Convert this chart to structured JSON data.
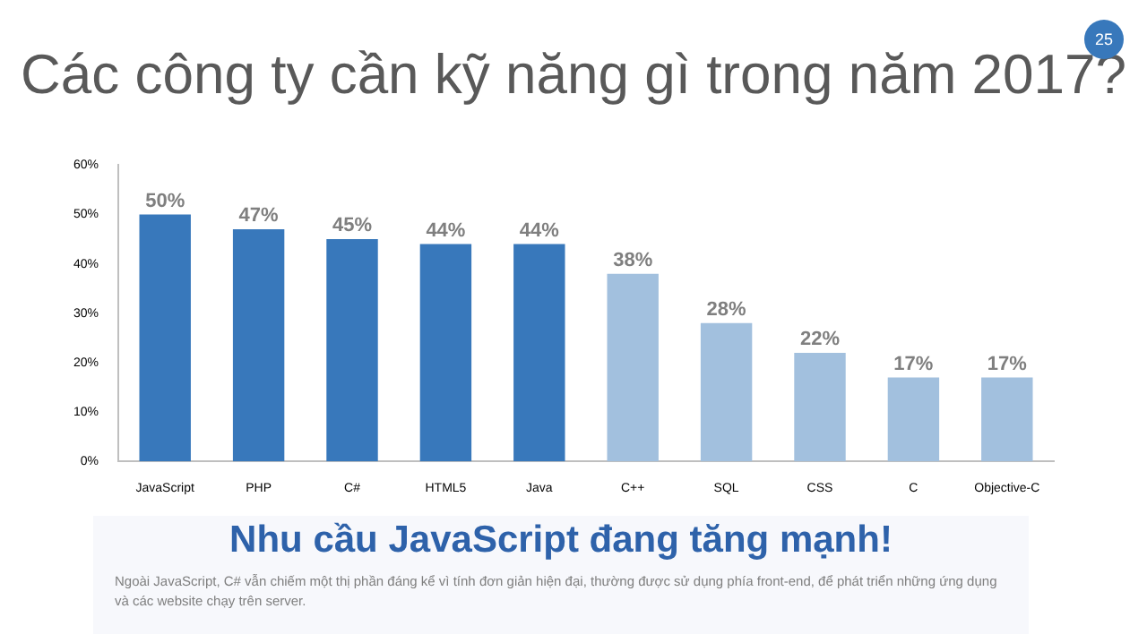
{
  "chart_data": {
    "type": "bar",
    "title": "Các công ty cần kỹ năng gì trong năm 2017?",
    "categories": [
      "JavaScript",
      "PHP",
      "C#",
      "HTML5",
      "Java",
      "C++",
      "SQL",
      "CSS",
      "C",
      "Objective-C"
    ],
    "values": [
      50,
      47,
      45,
      44,
      44,
      38,
      28,
      22,
      17,
      17
    ],
    "colors": [
      "#3878bb",
      "#3878bb",
      "#3878bb",
      "#3878bb",
      "#3878bb",
      "#a2c0de",
      "#a2c0de",
      "#a2c0de",
      "#a2c0de",
      "#a2c0de"
    ],
    "value_labels": [
      "50%",
      "47%",
      "45%",
      "44%",
      "44%",
      "38%",
      "28%",
      "22%",
      "17%",
      "17%"
    ],
    "ylim": [
      0,
      60
    ],
    "yticks": [
      {
        "value": 0,
        "label": "0%"
      },
      {
        "value": 10,
        "label": "10%"
      },
      {
        "value": 20,
        "label": "20%"
      },
      {
        "value": 30,
        "label": "30%"
      },
      {
        "value": 40,
        "label": "40%"
      },
      {
        "value": 50,
        "label": "50%"
      },
      {
        "value": 60,
        "label": "60%"
      }
    ],
    "grid": false,
    "legend": false,
    "annotations": [
      "25",
      "Nhu cầu JavaScript đang tăng mạnh!",
      "Ngoài JavaScript, C# vẫn chiếm một thị phần đáng kể vì tính đơn giản hiện đại, thường được sử dụng phía front-end, để phát triển những ứng dụng và các website chạy trên server."
    ]
  }
}
